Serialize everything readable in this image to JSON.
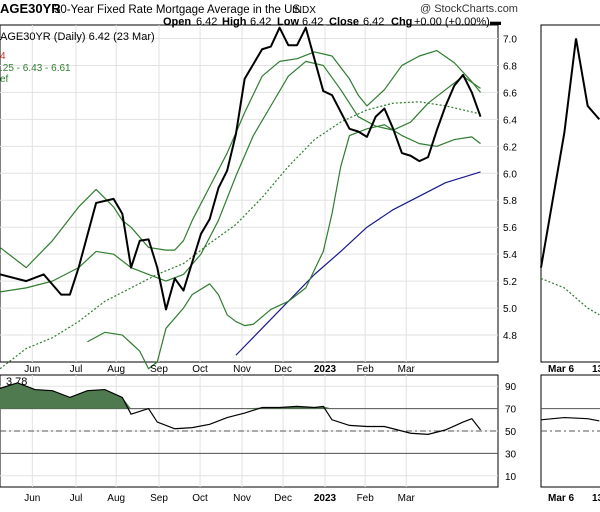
{
  "header": {
    "symbol_title": "AGE30YR",
    "description": "30-Year Fixed Rate Mortgage Average in the US",
    "exchange": "INDX",
    "copyright": "@ StockCharts.com",
    "ohlc": {
      "open_label": "Open",
      "open": "6.42",
      "high_label": "High",
      "high": "6.42",
      "low_label": "Low",
      "low": "6.42",
      "close_label": "Close",
      "close": "6.42",
      "chg_label": "Chg",
      "chg": "+0.00 (+0.00%)"
    }
  },
  "legend": {
    "line1": "AGE30YR (Daily) 6.42 (23 Mar)",
    "line2": "4",
    "line2_color": "#cc3333",
    "line3": ".25 - 6.43 - 6.61",
    "line3_color": "#2f7d2f",
    "line4": "ef",
    "line4_color": "#2f7d2f"
  },
  "rsi_panel": {
    "label": "3.78"
  },
  "colors": {
    "price": "#000000",
    "bollinger": "#2f7d2f",
    "ma_dotted": "#2f7d2f",
    "ma_long": "#1a1a8c",
    "rsi_fill": "#4f7a4f",
    "grid": "#e2e2e2",
    "axis": "#000000"
  },
  "chart_data": [
    {
      "type": "line",
      "title": "30-Year Fixed Rate Mortgage Average in the US",
      "x_labels": [
        "Jun",
        "Jul",
        "Aug",
        "Sep",
        "Oct",
        "Nov",
        "Dec",
        "2023",
        "Feb",
        "Mar"
      ],
      "y_ticks": [
        "4.8",
        "5.0",
        "5.2",
        "5.4",
        "5.6",
        "5.8",
        "6.0",
        "6.2",
        "6.4",
        "6.6",
        "6.8",
        "7.0"
      ],
      "ylim": [
        4.6,
        7.1
      ],
      "series": [
        {
          "role": "price",
          "points": [
            [
              0,
              5.25
            ],
            [
              3,
              5.2
            ],
            [
              5,
              5.25
            ],
            [
              7,
              5.1
            ],
            [
              8,
              5.1
            ],
            [
              9,
              5.3
            ],
            [
              11,
              5.78
            ],
            [
              13,
              5.81
            ],
            [
              14,
              5.7
            ],
            [
              15,
              5.3
            ],
            [
              16,
              5.5
            ],
            [
              17,
              5.51
            ],
            [
              18,
              5.3
            ],
            [
              19,
              4.99
            ],
            [
              20,
              5.22
            ],
            [
              21,
              5.13
            ],
            [
              23,
              5.55
            ],
            [
              24,
              5.66
            ],
            [
              25,
              5.89
            ],
            [
              26,
              6.02
            ],
            [
              27,
              6.29
            ],
            [
              28,
              6.7
            ],
            [
              30,
              6.92
            ],
            [
              31,
              6.94
            ],
            [
              32,
              7.08
            ],
            [
              33,
              6.95
            ],
            [
              34,
              6.95
            ],
            [
              35,
              7.08
            ],
            [
              37,
              6.61
            ],
            [
              38,
              6.58
            ],
            [
              40,
              6.33
            ],
            [
              41,
              6.31
            ],
            [
              42,
              6.27
            ],
            [
              43,
              6.42
            ],
            [
              44,
              6.48
            ],
            [
              45,
              6.33
            ],
            [
              46,
              6.15
            ],
            [
              47,
              6.13
            ],
            [
              48,
              6.09
            ],
            [
              49,
              6.12
            ],
            [
              50,
              6.32
            ],
            [
              51,
              6.5
            ],
            [
              52,
              6.65
            ],
            [
              53,
              6.73
            ],
            [
              54,
              6.6
            ],
            [
              55,
              6.42
            ]
          ]
        },
        {
          "role": "bollinger-upper",
          "points": [
            [
              0,
              5.45
            ],
            [
              3,
              5.3
            ],
            [
              6,
              5.5
            ],
            [
              9,
              5.75
            ],
            [
              11,
              5.88
            ],
            [
              13,
              5.75
            ],
            [
              14,
              5.65
            ],
            [
              15,
              5.6
            ],
            [
              17,
              5.45
            ],
            [
              19,
              5.43
            ],
            [
              20,
              5.43
            ],
            [
              21,
              5.5
            ],
            [
              22,
              5.65
            ],
            [
              24,
              5.9
            ],
            [
              26,
              6.15
            ],
            [
              28,
              6.45
            ],
            [
              30,
              6.72
            ],
            [
              32,
              6.83
            ],
            [
              34,
              6.85
            ],
            [
              36,
              6.9
            ],
            [
              38,
              6.87
            ],
            [
              40,
              6.7
            ],
            [
              41,
              6.58
            ],
            [
              42,
              6.5
            ],
            [
              44,
              6.62
            ],
            [
              46,
              6.8
            ],
            [
              48,
              6.87
            ],
            [
              50,
              6.91
            ],
            [
              52,
              6.82
            ],
            [
              54,
              6.68
            ],
            [
              55,
              6.6
            ]
          ]
        },
        {
          "role": "bollinger-middle",
          "points": [
            [
              0,
              5.12
            ],
            [
              3,
              5.15
            ],
            [
              6,
              5.2
            ],
            [
              9,
              5.3
            ],
            [
              11,
              5.42
            ],
            [
              13,
              5.4
            ],
            [
              15,
              5.3
            ],
            [
              17,
              5.25
            ],
            [
              19,
              5.2
            ],
            [
              21,
              5.25
            ],
            [
              23,
              5.4
            ],
            [
              25,
              5.65
            ],
            [
              27,
              5.98
            ],
            [
              29,
              6.28
            ],
            [
              31,
              6.5
            ],
            [
              33,
              6.72
            ],
            [
              35,
              6.83
            ],
            [
              37,
              6.8
            ],
            [
              39,
              6.62
            ],
            [
              41,
              6.42
            ],
            [
              43,
              6.35
            ],
            [
              45,
              6.32
            ],
            [
              47,
              6.38
            ],
            [
              49,
              6.52
            ],
            [
              51,
              6.62
            ],
            [
              53,
              6.72
            ],
            [
              55,
              6.63
            ]
          ]
        },
        {
          "role": "bollinger-lower",
          "points": [
            [
              10,
              4.75
            ],
            [
              12,
              4.82
            ],
            [
              14,
              4.8
            ],
            [
              16,
              4.68
            ],
            [
              17,
              4.55
            ],
            [
              18,
              4.6
            ],
            [
              19,
              4.85
            ],
            [
              21,
              5.0
            ],
            [
              22,
              5.1
            ],
            [
              24,
              5.18
            ],
            [
              25,
              5.1
            ],
            [
              26,
              4.95
            ],
            [
              27,
              4.9
            ],
            [
              28,
              4.87
            ],
            [
              29,
              4.88
            ],
            [
              31,
              4.99
            ],
            [
              33,
              5.05
            ],
            [
              35,
              5.15
            ],
            [
              37,
              5.42
            ],
            [
              38,
              5.7
            ],
            [
              39,
              6.05
            ],
            [
              40,
              6.28
            ],
            [
              42,
              6.33
            ],
            [
              44,
              6.36
            ],
            [
              46,
              6.28
            ],
            [
              48,
              6.22
            ],
            [
              50,
              6.2
            ],
            [
              52,
              6.25
            ],
            [
              54,
              6.27
            ],
            [
              55,
              6.22
            ]
          ]
        },
        {
          "role": "ma-dotted",
          "points": [
            [
              0,
              4.55
            ],
            [
              3,
              4.7
            ],
            [
              6,
              4.78
            ],
            [
              9,
              4.9
            ],
            [
              12,
              5.05
            ],
            [
              15,
              5.15
            ],
            [
              18,
              5.25
            ],
            [
              21,
              5.33
            ],
            [
              24,
              5.48
            ],
            [
              27,
              5.62
            ],
            [
              30,
              5.82
            ],
            [
              33,
              6.05
            ],
            [
              36,
              6.25
            ],
            [
              39,
              6.38
            ],
            [
              42,
              6.47
            ],
            [
              45,
              6.52
            ],
            [
              48,
              6.53
            ],
            [
              51,
              6.5
            ],
            [
              55,
              6.44
            ]
          ]
        },
        {
          "role": "ma-long",
          "points": [
            [
              27,
              4.65
            ],
            [
              30,
              4.85
            ],
            [
              33,
              5.05
            ],
            [
              36,
              5.25
            ],
            [
              39,
              5.42
            ],
            [
              42,
              5.6
            ],
            [
              45,
              5.73
            ],
            [
              48,
              5.83
            ],
            [
              51,
              5.93
            ],
            [
              55,
              6.01
            ]
          ]
        }
      ]
    },
    {
      "type": "area",
      "title": "RSI",
      "y_ticks": [
        "10",
        "30",
        "50",
        "70",
        "90"
      ],
      "ylim": [
        0,
        100
      ],
      "levels": [
        30,
        50,
        70
      ],
      "values": [
        [
          0,
          88
        ],
        [
          2,
          93
        ],
        [
          4,
          87
        ],
        [
          6,
          86
        ],
        [
          8,
          80
        ],
        [
          10,
          86
        ],
        [
          12,
          87
        ],
        [
          14,
          80
        ],
        [
          15,
          65
        ],
        [
          17,
          70
        ],
        [
          18,
          58
        ],
        [
          20,
          52
        ],
        [
          22,
          53
        ],
        [
          24,
          56
        ],
        [
          26,
          62
        ],
        [
          28,
          66
        ],
        [
          30,
          71
        ],
        [
          32,
          71
        ],
        [
          34,
          72
        ],
        [
          36,
          71
        ],
        [
          37,
          72
        ],
        [
          38,
          60
        ],
        [
          40,
          55
        ],
        [
          42,
          54
        ],
        [
          44,
          54
        ],
        [
          45,
          52
        ],
        [
          47,
          48
        ],
        [
          49,
          47
        ],
        [
          51,
          51
        ],
        [
          53,
          58
        ],
        [
          54,
          61
        ],
        [
          55,
          51
        ]
      ]
    },
    {
      "type": "line",
      "title": "inset",
      "x_labels": [
        "Mar 6",
        "13"
      ],
      "price": [
        [
          0,
          5.3
        ],
        [
          2,
          6.3
        ],
        [
          3,
          7.0
        ],
        [
          4,
          6.5
        ],
        [
          5,
          6.4
        ]
      ],
      "ma_dotted": [
        [
          0,
          5.22
        ],
        [
          2,
          5.15
        ],
        [
          4,
          5.0
        ],
        [
          5,
          4.95
        ]
      ],
      "rsi": [
        [
          0,
          60
        ],
        [
          2,
          62
        ],
        [
          4,
          61
        ],
        [
          5,
          59
        ]
      ]
    }
  ]
}
